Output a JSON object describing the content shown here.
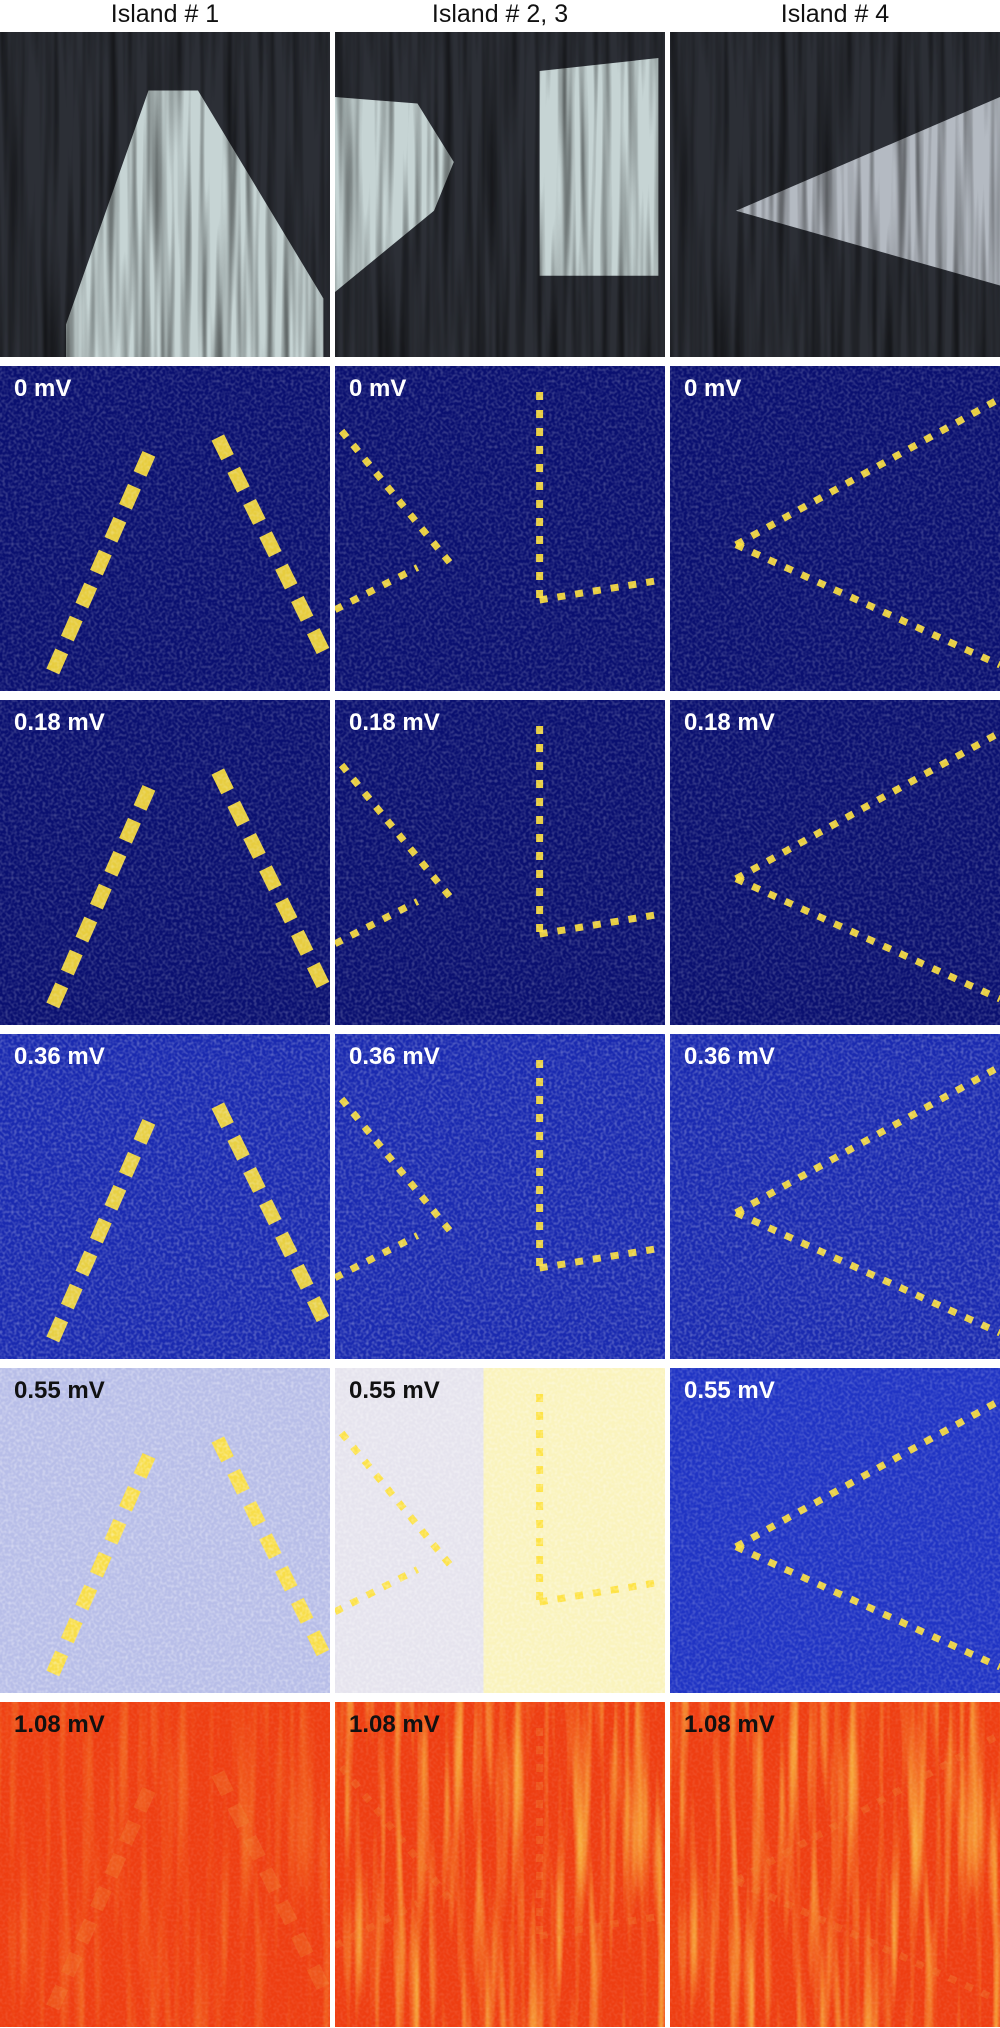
{
  "columns": [
    "Island # 1",
    "Island # 2, 3",
    "Island # 4"
  ],
  "rows": [
    [
      "0 mV",
      "0 mV",
      "0 mV"
    ],
    [
      "0.18 mV",
      "0.18 mV",
      "0.18 mV"
    ],
    [
      "0.36 mV",
      "0.36 mV",
      "0.36 mV"
    ],
    [
      "0.55 mV",
      "0.55 mV",
      "0.55 mV"
    ],
    [
      "1.08 mV",
      "1.08 mV",
      "1.08 mV"
    ]
  ]
}
